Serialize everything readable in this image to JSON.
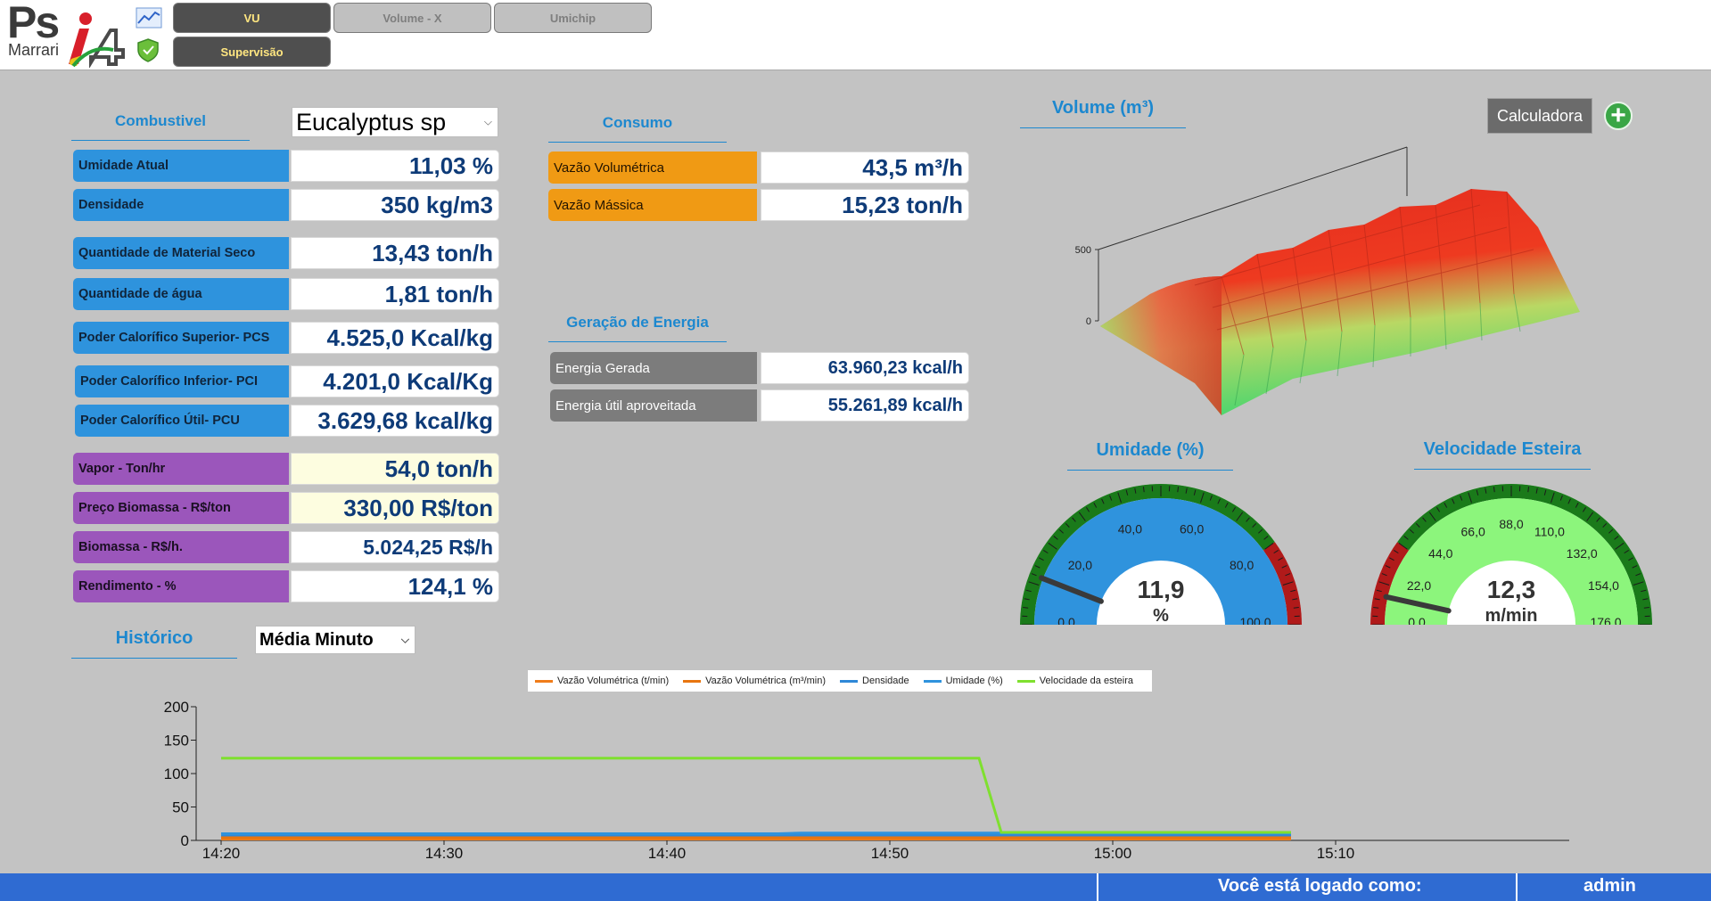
{
  "header": {
    "logo_ps": "Ps",
    "logo_marrari": "Marrari",
    "logo_i4": "i4",
    "icons": [
      "chart-icon",
      "shield-icon"
    ],
    "tabs": [
      {
        "label": "VU",
        "active": true
      },
      {
        "label": "Volume - X",
        "active": false
      },
      {
        "label": "Umichip",
        "active": false
      },
      {
        "label": "Supervisão",
        "active": true
      }
    ]
  },
  "combustivel": {
    "title": "Combustivel",
    "select_value": "Eucalyptus sp",
    "rows": [
      {
        "label": "Umidade Atual",
        "value": "11,03  %"
      },
      {
        "label": "Densidade",
        "value": "350 kg/m3"
      },
      {
        "label": "Quantidade de Material Seco",
        "value": "13,43 ton/h"
      },
      {
        "label": "Quantidade de água",
        "value": "1,81 ton/h"
      },
      {
        "label": "Poder Calorífico Superior- PCS",
        "value": "4.525,0 Kcal/kg"
      },
      {
        "label": "Poder Calorífico Inferior- PCI",
        "value": "4.201,0 Kcal/Kg"
      },
      {
        "label": "Poder Calorífico Útil- PCU",
        "value": "3.629,68 kcal/kg"
      },
      {
        "label": "Vapor - Ton/hr",
        "value": "54,0 ton/h"
      },
      {
        "label": "Preço Biomassa - R$/ton",
        "value": "330,00 R$/ton"
      },
      {
        "label": "Biomassa - R$/h.",
        "value": "5.024,25 R$/h"
      },
      {
        "label": "Rendimento - %",
        "value": "124,1 %"
      }
    ]
  },
  "consumo": {
    "title": "Consumo",
    "rows": [
      {
        "label": "Vazão Volumétrica",
        "value": "43,5 m³/h"
      },
      {
        "label": "Vazão Mássica",
        "value": "15,23 ton/h"
      }
    ]
  },
  "energia": {
    "title": "Geração de Energia",
    "rows": [
      {
        "label": "Energia Gerada",
        "value": "63.960,23 kcal/h"
      },
      {
        "label": "Energia útil aproveitada",
        "value": "55.261,89 kcal/h"
      }
    ]
  },
  "volume": {
    "title": "Volume (m³)",
    "calc_label": "Calculadora",
    "plus_icon": "plus-circle-icon",
    "axis_labels": [
      "500",
      "0"
    ]
  },
  "umidade_gauge": {
    "title": "Umidade (%)",
    "value": "11,9",
    "unit": "%",
    "value_num": 11.9,
    "min": 0,
    "max": 100,
    "ticks": [
      "0,0",
      "20,0",
      "40,0",
      "60,0",
      "80,0",
      "100,0"
    ],
    "face_color": "#2f93dd",
    "band_colors": [
      "#1a7a1a",
      "#b01a1a"
    ]
  },
  "velocidade_gauge": {
    "title": "Velocidade Esteira",
    "value": "12,3",
    "unit": "m/min",
    "value_num": 12.3,
    "min": 0,
    "max": 176,
    "ticks": [
      "0,0",
      "22,0",
      "44,0",
      "66,0",
      "88,0",
      "110,0",
      "132,0",
      "154,0",
      "176,0"
    ],
    "face_color": "#8cf57c",
    "band_colors": [
      "#b01a1a",
      "#1a7a1a"
    ]
  },
  "historico": {
    "title": "Histórico",
    "select_value": "Média Minuto"
  },
  "chart_data": {
    "type": "line",
    "x": [
      "14:20",
      "14:30",
      "14:40",
      "14:50",
      "15:00",
      "15:10"
    ],
    "x_range": [
      "14:20",
      "15:08"
    ],
    "ylim": [
      0,
      200
    ],
    "y_ticks": [
      "200",
      "150",
      "100",
      "50",
      "0"
    ],
    "legend_position": "top",
    "series": [
      {
        "name": "Vazão Volumétrica (t/min)",
        "color": "#f07d1a",
        "points": [
          [
            "14:20",
            2
          ],
          [
            "15:08",
            2
          ]
        ]
      },
      {
        "name": "Vazão Volumétrica (m³/min)",
        "color": "#e8750f",
        "points": [
          [
            "14:20",
            4
          ],
          [
            "15:08",
            4
          ]
        ]
      },
      {
        "name": "Densidade",
        "color": "#2f88d8",
        "points": [
          [
            "14:20",
            8
          ],
          [
            "15:08",
            8
          ]
        ]
      },
      {
        "name": "Umidade (%)",
        "color": "#2f93dd",
        "points": [
          [
            "14:20",
            10
          ],
          [
            "14:45",
            10
          ],
          [
            "14:46",
            11
          ],
          [
            "15:08",
            11
          ]
        ]
      },
      {
        "name": "Velocidade da esteira",
        "color": "#7fe02f",
        "points": [
          [
            "14:20",
            123
          ],
          [
            "14:54",
            123
          ],
          [
            "14:55",
            12
          ],
          [
            "15:08",
            12
          ]
        ]
      }
    ]
  },
  "footer": {
    "logged_text": "Você está logado como:",
    "user": "admin"
  }
}
